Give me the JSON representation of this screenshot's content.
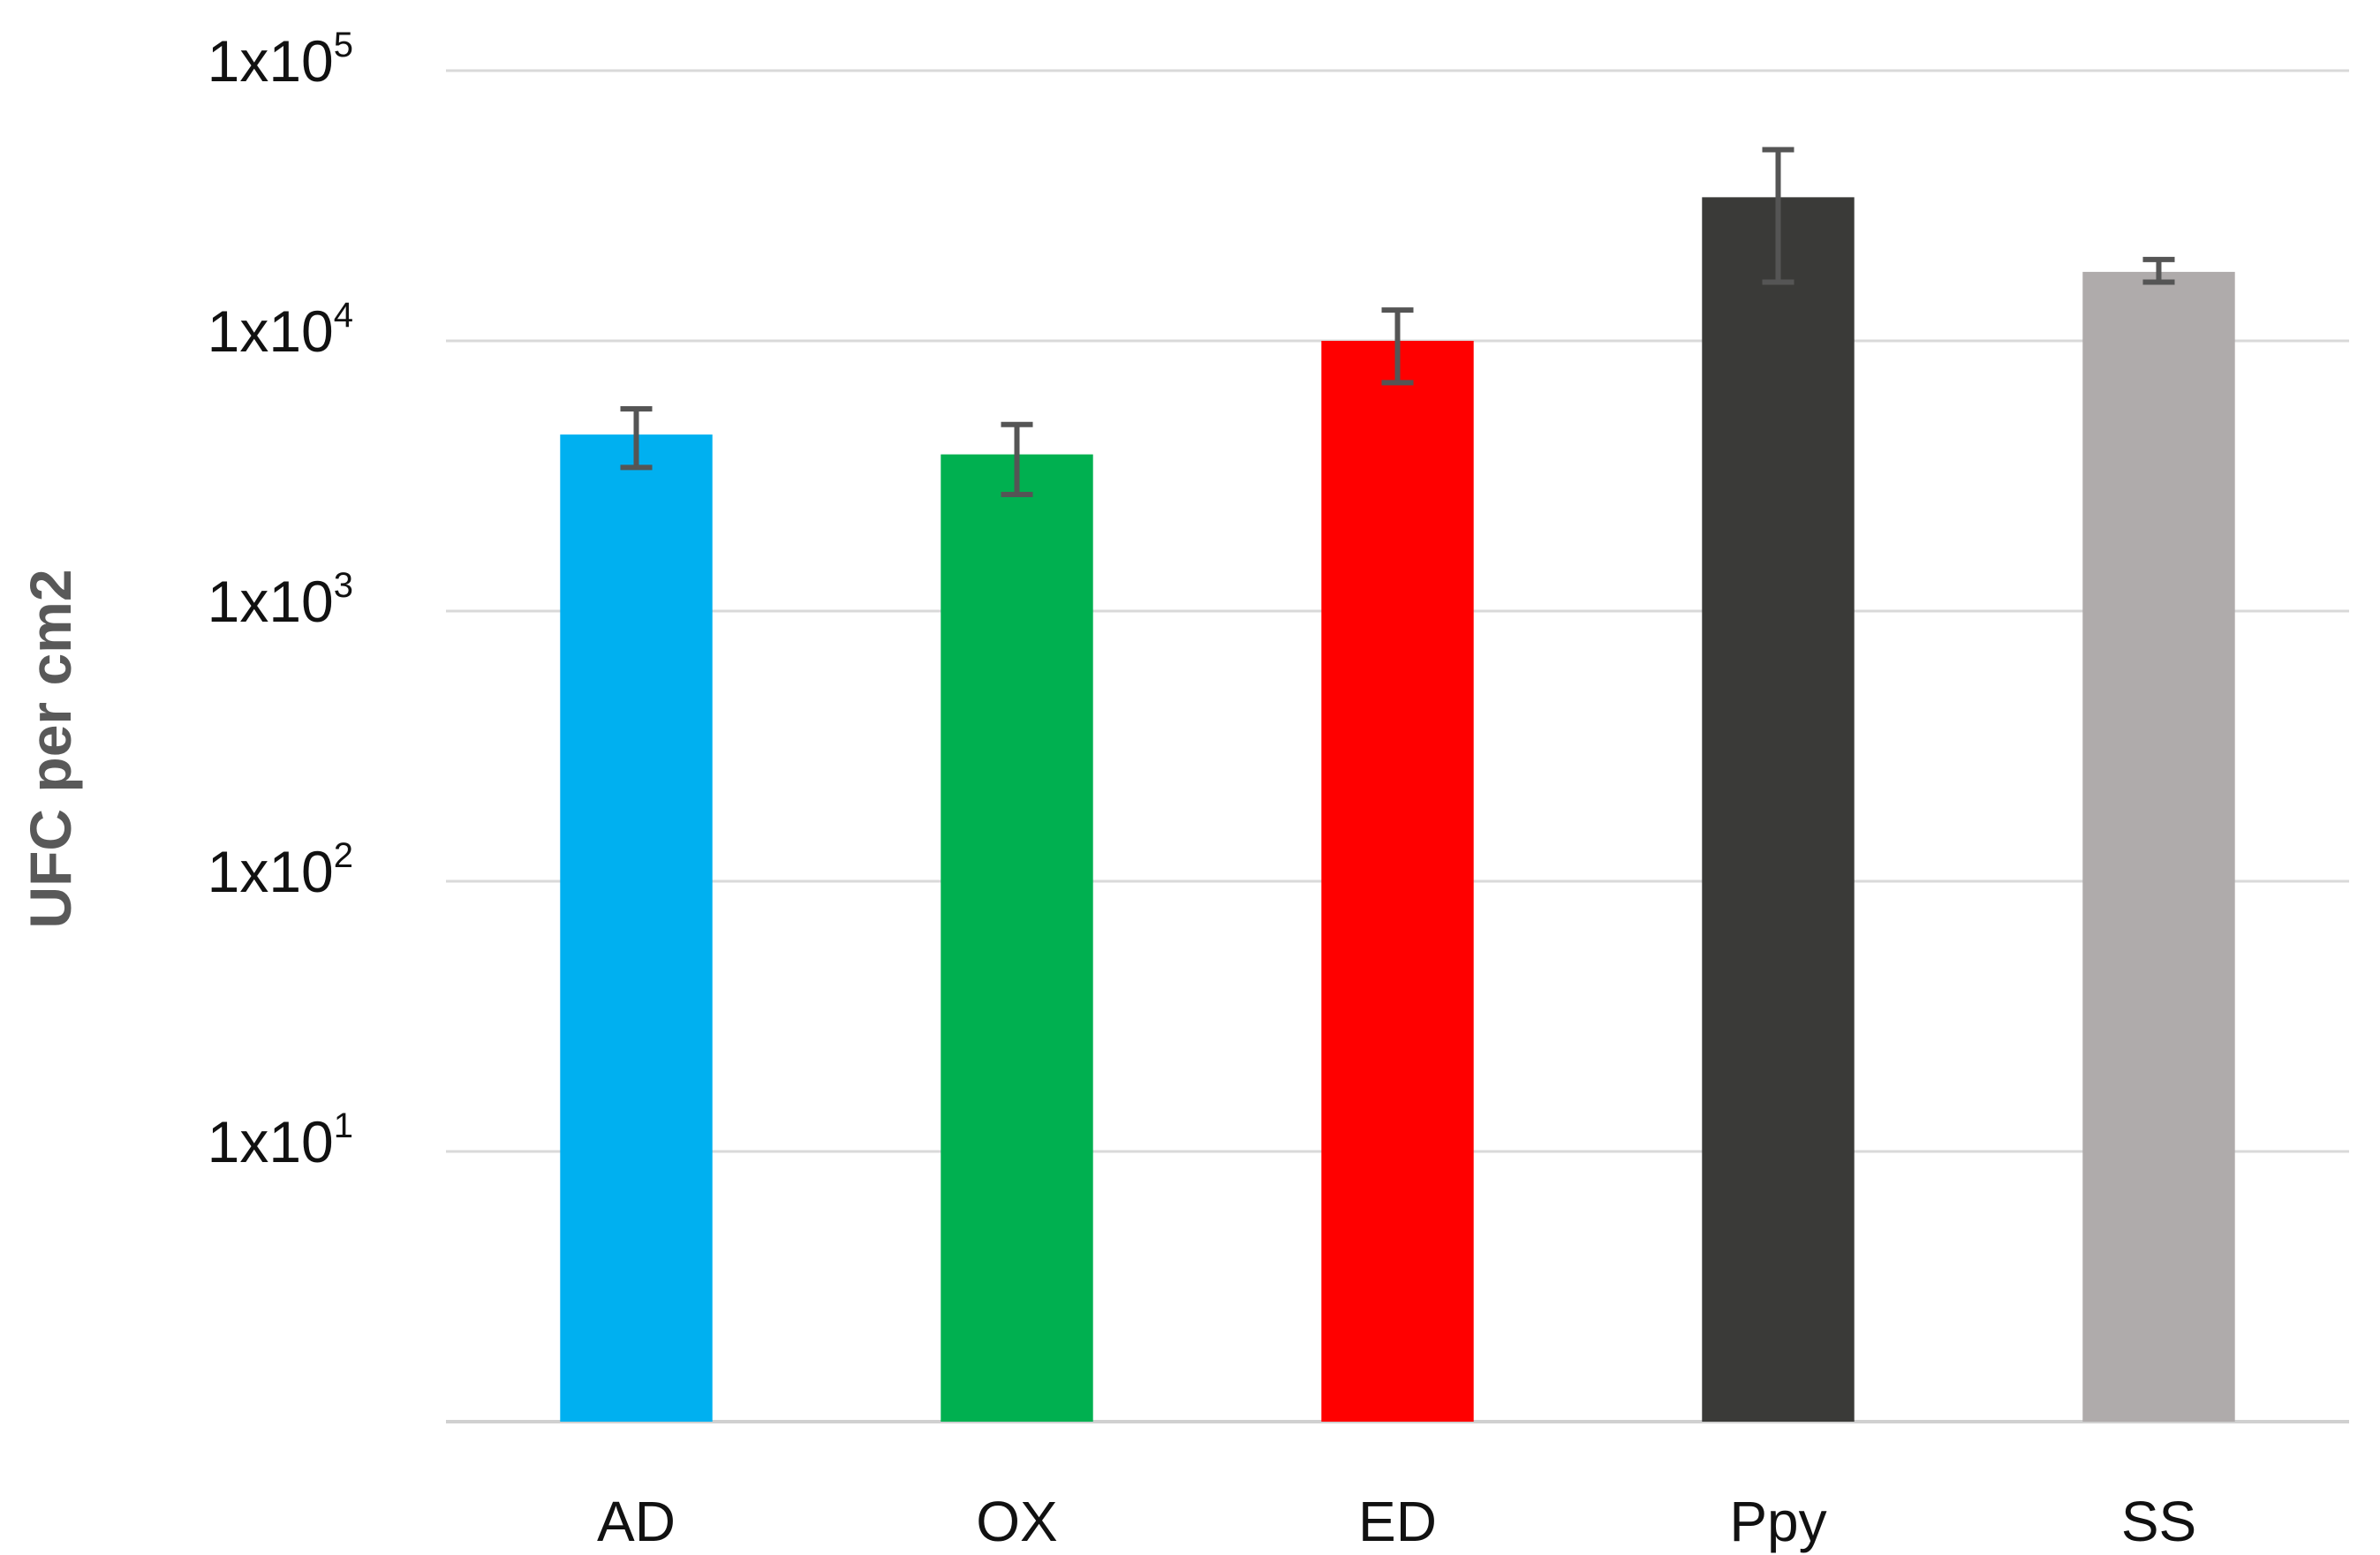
{
  "chart_data": {
    "type": "bar",
    "title": "",
    "xlabel": "",
    "ylabel": "UFC per cm2",
    "yscale": "log",
    "ylim": [
      1,
      100000
    ],
    "grid": true,
    "legend": "none",
    "yticks": [
      {
        "value": 10,
        "base": "1x10",
        "exp": "1"
      },
      {
        "value": 100,
        "base": "1x10",
        "exp": "2"
      },
      {
        "value": 1000,
        "base": "1x10",
        "exp": "3"
      },
      {
        "value": 10000,
        "base": "1x10",
        "exp": "4"
      },
      {
        "value": 100000,
        "base": "1x10",
        "exp": "5"
      }
    ],
    "categories": [
      "AD",
      "OX",
      "ED",
      "Ppy",
      "SS"
    ],
    "values": [
      4500,
      3800,
      10000,
      34000,
      18000
    ],
    "error_low": [
      3400,
      2700,
      7000,
      16500,
      16500
    ],
    "error_high": [
      5600,
      4900,
      13000,
      51000,
      20000
    ],
    "colors": [
      "#00b0f0",
      "#00b050",
      "#ff0000",
      "#3a3a38",
      "#afabab"
    ]
  }
}
